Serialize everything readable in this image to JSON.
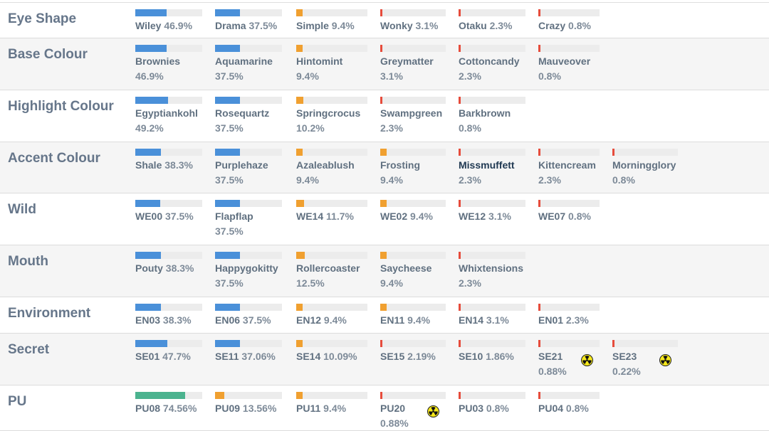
{
  "colors": {
    "blue": "#4a90d9",
    "orange": "#f0a030",
    "red": "#e64c3c",
    "green": "#4bb38f",
    "track": "#ececec"
  },
  "rows": [
    {
      "title": "Eye Shape",
      "items": [
        {
          "name": "Wiley",
          "pct": "46.9%",
          "val": 46.9,
          "color": "blue"
        },
        {
          "name": "Drama",
          "pct": "37.5%",
          "val": 37.5,
          "color": "blue"
        },
        {
          "name": "Simple",
          "pct": "9.4%",
          "val": 9.4,
          "color": "orange"
        },
        {
          "name": "Wonky",
          "pct": "3.1%",
          "val": 3.1,
          "color": "red"
        },
        {
          "name": "Otaku",
          "pct": "2.3%",
          "val": 2.3,
          "color": "red"
        },
        {
          "name": "Crazy",
          "pct": "0.8%",
          "val": 0.8,
          "color": "red"
        }
      ]
    },
    {
      "title": "Base Colour",
      "items": [
        {
          "name": "Brownies",
          "pct": "46.9%",
          "val": 46.9,
          "color": "blue",
          "wrap": true
        },
        {
          "name": "Aquamarine",
          "pct": "37.5%",
          "val": 37.5,
          "color": "blue",
          "wrap": true
        },
        {
          "name": "Hintomint",
          "pct": "9.4%",
          "val": 9.4,
          "color": "orange",
          "wrap": true
        },
        {
          "name": "Greymatter",
          "pct": "3.1%",
          "val": 3.1,
          "color": "red",
          "wrap": true
        },
        {
          "name": "Cottoncandy",
          "pct": "2.3%",
          "val": 2.3,
          "color": "red",
          "wrap": true
        },
        {
          "name": "Mauveover",
          "pct": "0.8%",
          "val": 0.8,
          "color": "red",
          "wrap": true
        }
      ]
    },
    {
      "title": "Highlight Colour",
      "items": [
        {
          "name": "Egyptiankohl",
          "pct": "49.2%",
          "val": 49.2,
          "color": "blue",
          "wrap": true
        },
        {
          "name": "Rosequartz",
          "pct": "37.5%",
          "val": 37.5,
          "color": "blue",
          "wrap": true
        },
        {
          "name": "Springcrocus",
          "pct": "10.2%",
          "val": 10.2,
          "color": "orange",
          "wrap": true
        },
        {
          "name": "Swampgreen",
          "pct": "2.3%",
          "val": 2.3,
          "color": "red",
          "wrap": true
        },
        {
          "name": "Barkbrown",
          "pct": "0.8%",
          "val": 0.8,
          "color": "red",
          "wrap": true
        }
      ]
    },
    {
      "title": "Accent Colour",
      "items": [
        {
          "name": "Shale",
          "pct": "38.3%",
          "val": 38.3,
          "color": "blue"
        },
        {
          "name": "Purplehaze",
          "pct": "37.5%",
          "val": 37.5,
          "color": "blue",
          "wrap": true
        },
        {
          "name": "Azaleablush",
          "pct": "9.4%",
          "val": 9.4,
          "color": "orange",
          "wrap": true
        },
        {
          "name": "Frosting",
          "pct": "9.4%",
          "val": 9.4,
          "color": "orange",
          "wrap": true
        },
        {
          "name": "Missmuffett",
          "pct": "2.3%",
          "val": 2.3,
          "color": "red",
          "wrap": true,
          "dark": true
        },
        {
          "name": "Kittencream",
          "pct": "2.3%",
          "val": 2.3,
          "color": "red",
          "wrap": true
        },
        {
          "name": "Morningglory",
          "pct": "0.8%",
          "val": 0.8,
          "color": "red",
          "wrap": true
        }
      ]
    },
    {
      "title": "Wild",
      "items": [
        {
          "name": "WE00",
          "pct": "37.5%",
          "val": 37.5,
          "color": "blue"
        },
        {
          "name": "Flapflap",
          "pct": "37.5%",
          "val": 37.5,
          "color": "blue",
          "wrap": true
        },
        {
          "name": "WE14",
          "pct": "11.7%",
          "val": 11.7,
          "color": "orange"
        },
        {
          "name": "WE02",
          "pct": "9.4%",
          "val": 9.4,
          "color": "orange"
        },
        {
          "name": "WE12",
          "pct": "3.1%",
          "val": 3.1,
          "color": "red"
        },
        {
          "name": "WE07",
          "pct": "0.8%",
          "val": 0.8,
          "color": "red"
        }
      ]
    },
    {
      "title": "Mouth",
      "items": [
        {
          "name": "Pouty",
          "pct": "38.3%",
          "val": 38.3,
          "color": "blue"
        },
        {
          "name": "Happygokitty",
          "pct": "37.5%",
          "val": 37.5,
          "color": "blue",
          "wrap": true
        },
        {
          "name": "Rollercoaster",
          "pct": "12.5%",
          "val": 12.5,
          "color": "orange",
          "wrap": true
        },
        {
          "name": "Saycheese",
          "pct": "9.4%",
          "val": 9.4,
          "color": "orange",
          "wrap": true
        },
        {
          "name": "Whixtensions",
          "pct": "2.3%",
          "val": 2.3,
          "color": "red",
          "wrap": true
        }
      ]
    },
    {
      "title": "Environment",
      "items": [
        {
          "name": "EN03",
          "pct": "38.3%",
          "val": 38.3,
          "color": "blue"
        },
        {
          "name": "EN06",
          "pct": "37.5%",
          "val": 37.5,
          "color": "blue"
        },
        {
          "name": "EN12",
          "pct": "9.4%",
          "val": 9.4,
          "color": "orange"
        },
        {
          "name": "EN11",
          "pct": "9.4%",
          "val": 9.4,
          "color": "orange"
        },
        {
          "name": "EN14",
          "pct": "3.1%",
          "val": 3.1,
          "color": "red"
        },
        {
          "name": "EN01",
          "pct": "2.3%",
          "val": 2.3,
          "color": "red"
        }
      ]
    },
    {
      "title": "Secret",
      "items": [
        {
          "name": "SE01",
          "pct": "47.7%",
          "val": 47.7,
          "color": "blue"
        },
        {
          "name": "SE11",
          "pct": "37.06%",
          "val": 37.06,
          "color": "blue"
        },
        {
          "name": "SE14",
          "pct": "10.09%",
          "val": 10.09,
          "color": "orange"
        },
        {
          "name": "SE15",
          "pct": "2.19%",
          "val": 2.19,
          "color": "red"
        },
        {
          "name": "SE10",
          "pct": "1.86%",
          "val": 1.86,
          "color": "red"
        },
        {
          "name": "SE21",
          "pct": "0.88%",
          "val": 0.88,
          "color": "red",
          "wrap": true,
          "icon": "radioactive-icon"
        },
        {
          "name": "SE23",
          "pct": "0.22%",
          "val": 0.22,
          "color": "red",
          "wrap": true,
          "icon": "radioactive-icon"
        }
      ]
    },
    {
      "title": "PU",
      "items": [
        {
          "name": "PU08",
          "pct": "74.56%",
          "val": 74.56,
          "color": "green"
        },
        {
          "name": "PU09",
          "pct": "13.56%",
          "val": 13.56,
          "color": "orange"
        },
        {
          "name": "PU11",
          "pct": "9.4%",
          "val": 9.4,
          "color": "orange"
        },
        {
          "name": "PU20",
          "pct": "0.88%",
          "val": 0.88,
          "color": "red",
          "wrap": true,
          "icon": "radioactive-icon"
        },
        {
          "name": "PU03",
          "pct": "0.8%",
          "val": 0.8,
          "color": "red"
        },
        {
          "name": "PU04",
          "pct": "0.8%",
          "val": 0.8,
          "color": "red"
        }
      ]
    }
  ]
}
